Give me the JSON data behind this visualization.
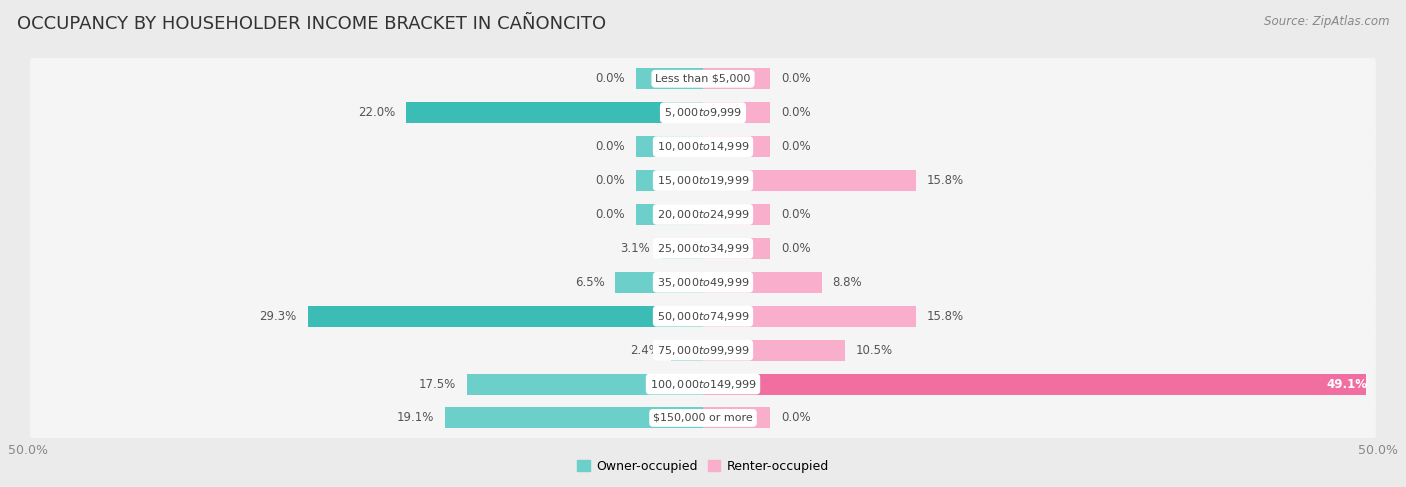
{
  "title": "OCCUPANCY BY HOUSEHOLDER INCOME BRACKET IN CAÑONCITO",
  "source": "Source: ZipAtlas.com",
  "categories": [
    "Less than $5,000",
    "$5,000 to $9,999",
    "$10,000 to $14,999",
    "$15,000 to $19,999",
    "$20,000 to $24,999",
    "$25,000 to $34,999",
    "$35,000 to $49,999",
    "$50,000 to $74,999",
    "$75,000 to $99,999",
    "$100,000 to $149,999",
    "$150,000 or more"
  ],
  "owner_values": [
    0.0,
    22.0,
    0.0,
    0.0,
    0.0,
    3.1,
    6.5,
    29.3,
    2.4,
    17.5,
    19.1
  ],
  "renter_values": [
    0.0,
    0.0,
    0.0,
    15.8,
    0.0,
    0.0,
    8.8,
    15.8,
    10.5,
    49.1,
    0.0
  ],
  "owner_color_light": "#6DCFCA",
  "owner_color_dark": "#3BBDB5",
  "renter_color_light": "#F9AECB",
  "renter_color_hot": "#F06EA0",
  "background_color": "#EBEBEB",
  "row_bg_color": "#F5F5F5",
  "bar_height": 0.62,
  "stub_size": 5.0,
  "xlim": 50.0,
  "title_fontsize": 13,
  "label_fontsize": 8.5,
  "cat_fontsize": 8.0,
  "tick_fontsize": 9,
  "source_fontsize": 8.5
}
